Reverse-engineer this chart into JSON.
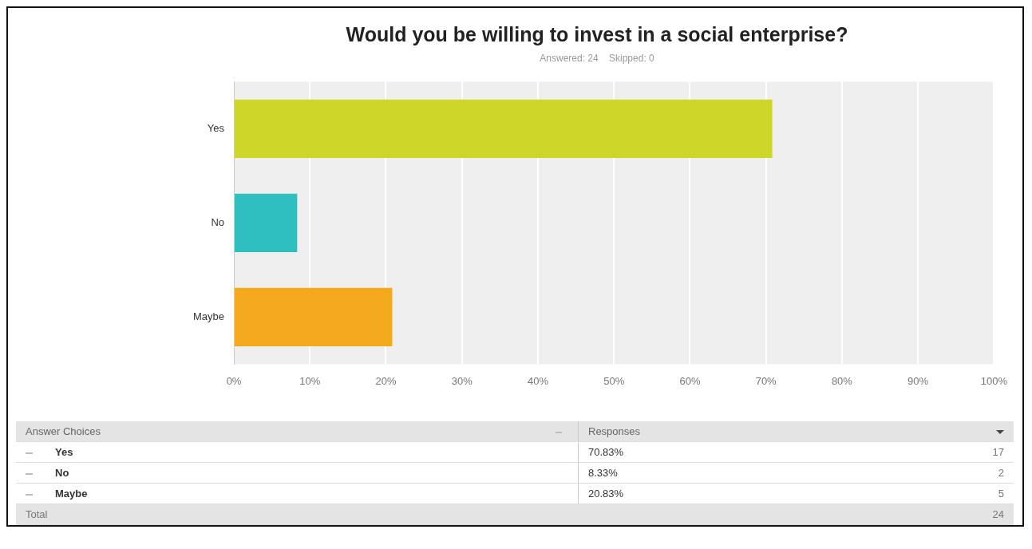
{
  "chart_data": {
    "type": "bar",
    "orientation": "horizontal",
    "title": "Would you be willing to invest in a social enterprise?",
    "subtitle": "Answered: 24    Skipped: 0",
    "categories": [
      "Yes",
      "No",
      "Maybe"
    ],
    "series": [
      {
        "colors": [
          "#cfd62a",
          "#2fbfc1",
          "#f5a91c"
        ],
        "values": [
          70.83,
          8.33,
          20.83
        ]
      }
    ],
    "value_labels": [
      "70.83%",
      "8.33%",
      "20.83%"
    ],
    "xlim": [
      0,
      100
    ],
    "xticks": [
      {
        "value": 0,
        "label": "0%"
      },
      {
        "value": 10,
        "label": "10%"
      },
      {
        "value": 20,
        "label": "20%"
      },
      {
        "value": 30,
        "label": "30%"
      },
      {
        "value": 40,
        "label": "40%"
      },
      {
        "value": 50,
        "label": "50%"
      },
      {
        "value": 60,
        "label": "60%"
      },
      {
        "value": 70,
        "label": "70%"
      },
      {
        "value": 80,
        "label": "80%"
      },
      {
        "value": 90,
        "label": "90%"
      },
      {
        "value": 100,
        "label": "100%"
      }
    ],
    "grid": "x",
    "legend": false,
    "annotations": [
      "Answer Choices",
      "Responses",
      "17",
      "2",
      "5",
      "Total",
      "24"
    ]
  }
}
